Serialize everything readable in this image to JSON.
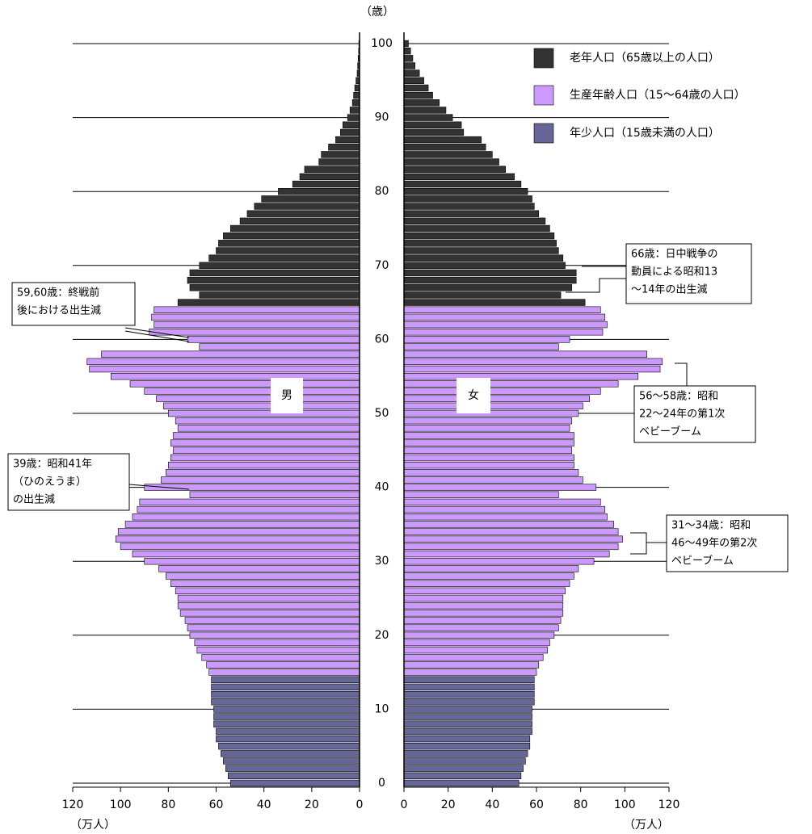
{
  "chart_data": {
    "type": "population-pyramid",
    "age_label": "（歳）",
    "ylim": [
      0,
      100
    ],
    "yticks": [
      0,
      10,
      20,
      30,
      40,
      50,
      60,
      70,
      80,
      90,
      100
    ],
    "grid": true,
    "male": {
      "label": "男",
      "unit": "（万人）",
      "xlim": [
        0,
        120
      ],
      "xticks": [
        0,
        20,
        40,
        60,
        80,
        100,
        120
      ]
    },
    "female": {
      "label": "女",
      "unit": "（万人）",
      "xlim": [
        0,
        120
      ],
      "xticks": [
        0,
        20,
        40,
        60,
        80,
        100,
        120
      ]
    },
    "series": [
      {
        "name": "老年人口（65歳以上の人口）",
        "color": "#333333",
        "ages": [
          65,
          66,
          67,
          68,
          69,
          70,
          71,
          72,
          73,
          74,
          75,
          76,
          77,
          78,
          79,
          80,
          81,
          82,
          83,
          84,
          85,
          86,
          87,
          88,
          89,
          90,
          91,
          92,
          93,
          94,
          95,
          96,
          97,
          98,
          99,
          100
        ],
        "male": [
          76,
          67,
          71,
          72,
          71,
          67,
          63,
          60,
          59,
          57,
          54,
          50,
          47,
          44,
          41,
          34,
          28,
          25,
          23,
          17,
          16,
          13,
          10,
          8,
          7,
          5,
          4,
          3,
          2.5,
          2,
          1.5,
          1,
          0.8,
          0.6,
          0.4,
          0.3
        ],
        "female": [
          82,
          71,
          76,
          78,
          78,
          73,
          72,
          70,
          69,
          68,
          66,
          64,
          61,
          59,
          58,
          56,
          53,
          50,
          46,
          43,
          40,
          37,
          35,
          27,
          26,
          22,
          19,
          16,
          13,
          11,
          9,
          7,
          5,
          4,
          3,
          2
        ]
      },
      {
        "name": "生産年齢人口（15～64歳の人口）",
        "color": "#cc99ff",
        "ages": [
          15,
          16,
          17,
          18,
          19,
          20,
          21,
          22,
          23,
          24,
          25,
          26,
          27,
          28,
          29,
          30,
          31,
          32,
          33,
          34,
          35,
          36,
          37,
          38,
          39,
          40,
          41,
          42,
          43,
          44,
          45,
          46,
          47,
          48,
          49,
          50,
          51,
          52,
          53,
          54,
          55,
          56,
          57,
          58,
          59,
          60,
          61,
          62,
          63,
          64
        ],
        "male": [
          63,
          64,
          66,
          68,
          69,
          71,
          72,
          73,
          75,
          76,
          76,
          77,
          79,
          81,
          84,
          90,
          95,
          100,
          102,
          101,
          98,
          95,
          93,
          92,
          71,
          90,
          83,
          81,
          80,
          79,
          78,
          79,
          78,
          76,
          77,
          80,
          82,
          85,
          90,
          96,
          104,
          113,
          114,
          108,
          67,
          72,
          88,
          86,
          87,
          86
        ],
        "female": [
          60,
          61,
          63,
          65,
          66,
          68,
          70,
          71,
          72,
          72,
          72,
          73,
          75,
          77,
          79,
          86,
          93,
          97,
          99,
          97,
          95,
          92,
          91,
          89,
          70,
          87,
          81,
          79,
          77,
          77,
          76,
          77,
          77,
          75,
          76,
          79,
          81,
          84,
          89,
          97,
          106,
          116,
          117,
          110,
          70,
          75,
          90,
          92,
          91,
          89
        ]
      },
      {
        "name": "年少人口（15歳未満の人口）",
        "color": "#666699",
        "ages": [
          0,
          1,
          2,
          3,
          4,
          5,
          6,
          7,
          8,
          9,
          10,
          11,
          12,
          13,
          14
        ],
        "male": [
          54,
          55,
          56,
          57,
          58,
          59,
          60,
          60,
          61,
          61,
          61,
          62,
          62,
          62,
          62
        ],
        "female": [
          52,
          53,
          54,
          55,
          56,
          57,
          57,
          58,
          58,
          58,
          58,
          59,
          59,
          59,
          59
        ]
      }
    ],
    "annotations": [
      {
        "lines": [
          "66歳：日中戦争の",
          "動員による昭和13",
          "～14年の出生減"
        ]
      },
      {
        "lines": [
          "59,60歳：終戦前",
          "後における出生減"
        ]
      },
      {
        "lines": [
          "56～58歳：昭和",
          "22～24年の第1次",
          "ベビーブーム"
        ]
      },
      {
        "lines": [
          "39歳：昭和41年",
          "（ひのえうま）",
          "の出生減"
        ]
      },
      {
        "lines": [
          "31～34歳：昭和",
          "46～49年の第2次",
          "ベビーブーム"
        ]
      }
    ]
  }
}
